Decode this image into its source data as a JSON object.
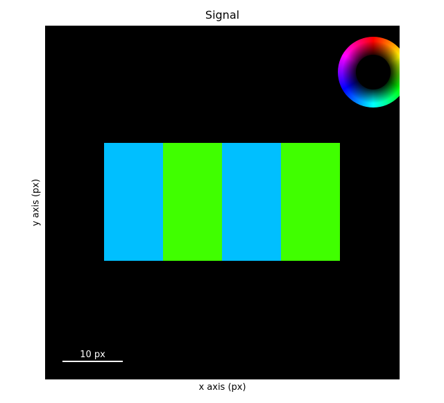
{
  "figure": {
    "title": "Signal",
    "xlabel": "x axis (px)",
    "ylabel": "y axis (px)",
    "scalebar_label": "10 px",
    "background_color": "#000000",
    "colorwheel_icon": "hsv-colorwheel"
  },
  "chart_data": {
    "type": "heatmap",
    "title": "Signal",
    "xlabel": "x axis (px)",
    "ylabel": "y axis (px)",
    "grid": false,
    "scalebar": "10 px",
    "stripes": [
      {
        "color": "#00bfff"
      },
      {
        "color": "#40ff00"
      },
      {
        "color": "#00bfff"
      },
      {
        "color": "#40ff00"
      }
    ]
  }
}
